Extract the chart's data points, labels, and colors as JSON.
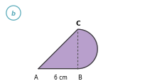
{
  "label_b": "b",
  "label_A": "A",
  "label_B": "B",
  "label_C": "C",
  "label_6cm": "6 cm",
  "AB": 6,
  "BC": 6,
  "shape_color": "#b89fcc",
  "edge_color": "#3a3a3a",
  "dashed_color": "#555555",
  "background_color": "#ffffff",
  "circle_label_color": "#5aabba",
  "figsize": [
    2.05,
    1.15
  ],
  "dpi": 100
}
